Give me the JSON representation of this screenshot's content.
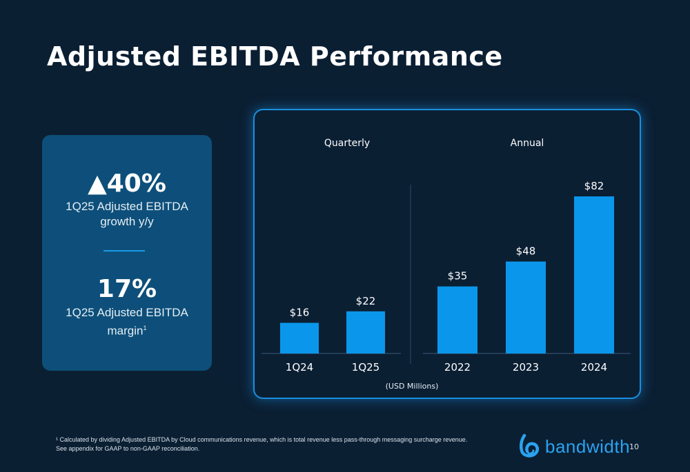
{
  "header": {
    "title": "Adjusted EBITDA Performance"
  },
  "kpis": {
    "growth_value": "▲40%",
    "growth_label_line1": "1Q25 Adjusted EBITDA",
    "growth_label_line2": "growth y/y",
    "margin_value": "17%",
    "margin_label_line1": "1Q25 Adjusted EBITDA",
    "margin_label_line2": "margin",
    "margin_footnote_mark": "1"
  },
  "chart_data": [
    {
      "type": "bar",
      "title": "Quarterly",
      "categories": [
        "1Q24",
        "1Q25"
      ],
      "values": [
        16,
        22
      ],
      "data_labels": [
        "$16",
        "$22"
      ],
      "color": "#0a97eb"
    },
    {
      "type": "bar",
      "title": "Annual",
      "categories": [
        "2022",
        "2023",
        "2024"
      ],
      "values": [
        35,
        48,
        82
      ],
      "data_labels": [
        "$35",
        "$48",
        "$82"
      ],
      "color": "#0a97eb"
    }
  ],
  "chart_note": "(USD Millions)",
  "footnote": {
    "line1": "¹ Calculated by dividing Adjusted EBITDA by Cloud communications revenue, which is total revenue less pass-through messaging surcharge revenue.",
    "line2": "See appendix for GAAP to non-GAAP reconciliation."
  },
  "logo": {
    "text": "bandwidth",
    "icon": "bandwidth-logo-icon"
  },
  "page_number": "10"
}
